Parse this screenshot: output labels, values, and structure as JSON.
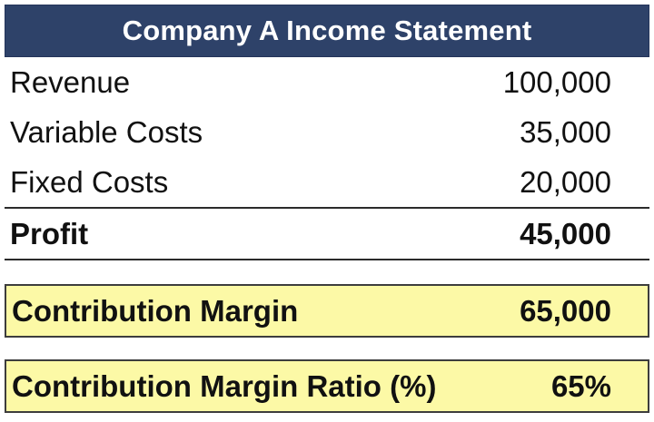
{
  "header": {
    "title": "Company A Income Statement"
  },
  "colors": {
    "header_bg": "#2E4269",
    "header_text": "#FFFFFF",
    "highlight_bg": "#FCF9A6",
    "highlight_border": "#3D3D3D",
    "rule_line": "#2B2B2B",
    "body_text": "#111111",
    "page_bg": "#FFFFFF"
  },
  "income_statement": {
    "rows": [
      {
        "label": "Revenue",
        "value": "100,000",
        "bold": false
      },
      {
        "label": "Variable Costs",
        "value": "35,000",
        "bold": false
      },
      {
        "label": "Fixed Costs",
        "value": "20,000",
        "bold": false
      },
      {
        "label": "Profit",
        "value": "45,000",
        "bold": true
      }
    ]
  },
  "highlights": {
    "rows": [
      {
        "label": "Contribution Margin",
        "value": "65,000"
      },
      {
        "label": "Contribution Margin Ratio (%)",
        "value": "65%"
      }
    ]
  }
}
